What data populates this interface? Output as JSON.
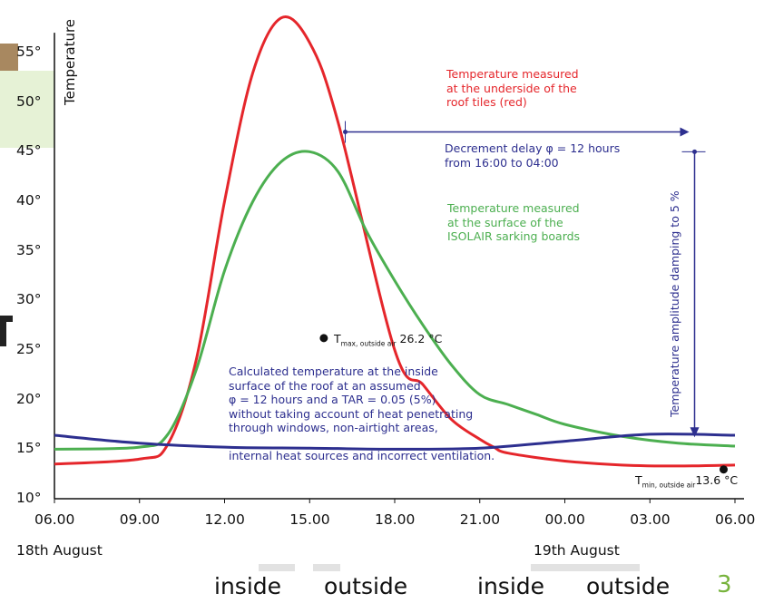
{
  "chart_data": {
    "type": "line",
    "ylabel": "Temperature",
    "ylim": [
      10,
      57
    ],
    "y_ticks": [
      "55°",
      "50°",
      "45°",
      "40°",
      "35°",
      "30°",
      "25°",
      "20°",
      "15°",
      "10°"
    ],
    "x_ticks": [
      "06.00",
      "09.00",
      "12.00",
      "15.00",
      "18.00",
      "21.00",
      "00.00",
      "03.00",
      "06.00"
    ],
    "x_dates": [
      "18th August",
      "19th August"
    ],
    "grid": false,
    "series": [
      {
        "color": "#e5262b",
        "x": [
          0,
          3,
          4,
          5,
          6,
          7,
          8,
          9,
          10,
          12,
          13,
          14,
          15,
          15.5,
          16,
          18,
          20,
          22,
          24
        ],
        "y": [
          13.5,
          14,
          15.5,
          24,
          40,
          53,
          58.5,
          56,
          48,
          25,
          21.5,
          18,
          16,
          15.2,
          14.6,
          13.8,
          13.4,
          13.3,
          13.4
        ]
      },
      {
        "color": "#4caf50",
        "x": [
          0,
          3,
          4,
          5,
          6,
          7,
          8,
          9,
          10,
          11,
          12,
          13,
          14,
          15,
          16,
          17,
          18,
          20,
          22,
          24
        ],
        "y": [
          15,
          15.2,
          16.5,
          23,
          33,
          40,
          44,
          45,
          43,
          37,
          32,
          27.5,
          23.5,
          20.5,
          19.5,
          18.5,
          17.5,
          16.3,
          15.6,
          15.3
        ]
      },
      {
        "color": "#2d2f8f",
        "x": [
          0,
          3,
          6,
          9,
          12,
          15,
          18,
          21,
          24
        ],
        "y": [
          16.4,
          15.6,
          15.2,
          15.1,
          15,
          15.1,
          15.8,
          16.5,
          16.4
        ]
      }
    ],
    "annotations": {
      "red_note": [
        "Temperature measured",
        "at the underside of the",
        "roof tiles (red)"
      ],
      "green_note": [
        "Temperature measured",
        "at the surface of the",
        "ISOLAIR sarking boards"
      ],
      "delay_note": [
        "Decrement delay φ = 12 hours",
        "from 16:00 to 04:00"
      ],
      "inside_note": [
        "Calculated temperature at the inside",
        "surface of the roof at an assumed",
        "φ = 12 hours and a TAR = 0.05 (5%)",
        "without taking account of heat penetrating",
        "through windows, non-airtight areas,",
        "",
        "internal heat sources and incorrect ventilation."
      ],
      "damping_note": "Temperature amplitude damping to 5 %",
      "tmax": {
        "prefix": "T",
        "sub": "max, outside air",
        "value": "26.2 °C",
        "x": 9.5,
        "y": 26.2
      },
      "tmin": {
        "prefix": "T",
        "sub": "min, outside air",
        "value": "13.6 °C",
        "x": 23.6,
        "y": 14.6
      }
    },
    "delay_arrow": {
      "from_x": 10,
      "to_x": 22,
      "y": 47
    },
    "damping_arrow": {
      "x": 22,
      "from_y": 45,
      "to_y": 16.2
    }
  },
  "footer": {
    "words": [
      "inside",
      "outside",
      "inside",
      "outside"
    ],
    "slide_number": "3"
  }
}
